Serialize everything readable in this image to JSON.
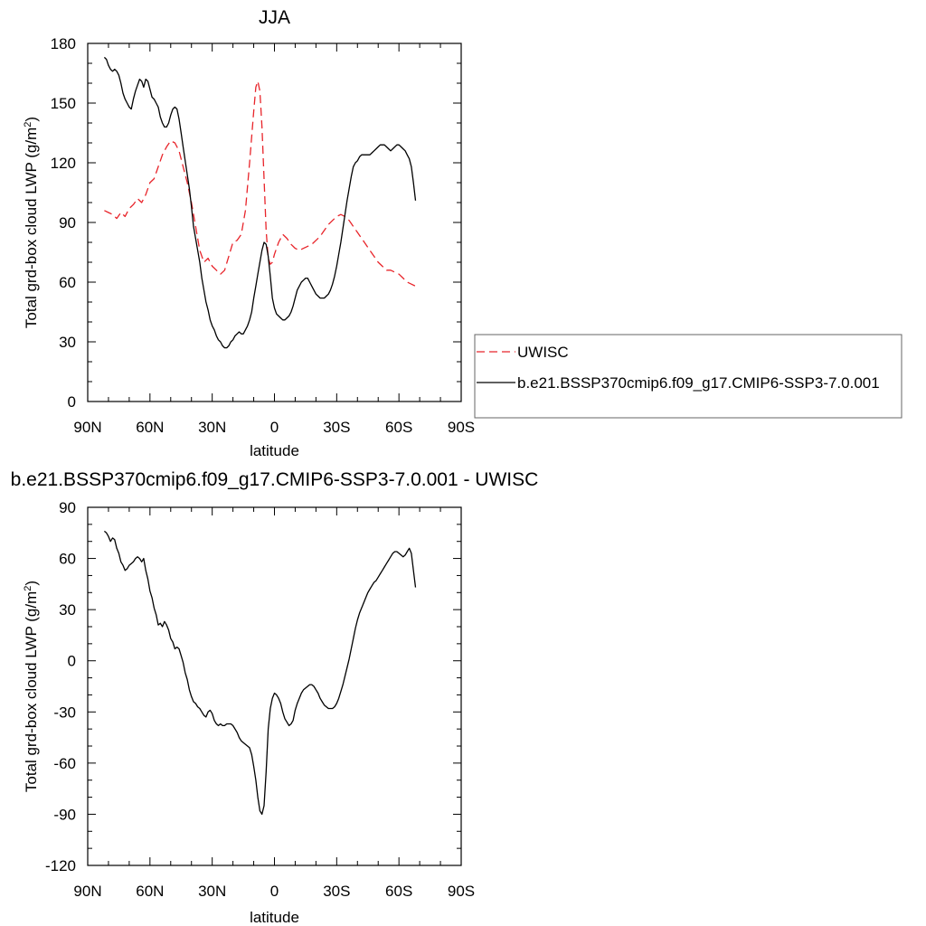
{
  "chart_data": [
    {
      "type": "line",
      "title": "JJA",
      "xlabel": "latitude",
      "ylabel": "Total grd-box cloud LWP (g/m",
      "ylabel_sup": "2",
      "ylabel_close": ")",
      "x_ticks": [
        "90N",
        "60N",
        "30N",
        "0",
        "30S",
        "60S",
        "90S"
      ],
      "x_tick_values": [
        90,
        60,
        30,
        0,
        -30,
        -60,
        -90
      ],
      "xlim": [
        90,
        -90
      ],
      "ylim": [
        0,
        180
      ],
      "y_ticks": [
        0,
        30,
        60,
        90,
        120,
        150,
        180
      ],
      "grid": false,
      "legend_position": "right",
      "series": [
        {
          "name": "UWISC",
          "color": "#e8242a",
          "dash": "dashed",
          "x": [
            82,
            80,
            78,
            76,
            74,
            72,
            70,
            68,
            66,
            64,
            62,
            60,
            58,
            56,
            54,
            52,
            50,
            48,
            46,
            44,
            42,
            40,
            38,
            36,
            34,
            32,
            30,
            28,
            26,
            24,
            22,
            20,
            18,
            16,
            14,
            12,
            10,
            9,
            8,
            7,
            6,
            5,
            4,
            3,
            2,
            1,
            0,
            -2,
            -4,
            -6,
            -8,
            -10,
            -12,
            -14,
            -16,
            -18,
            -20,
            -22,
            -24,
            -26,
            -28,
            -30,
            -32,
            -34,
            -36,
            -38,
            -40,
            -42,
            -44,
            -46,
            -48,
            -50,
            -52,
            -54,
            -56,
            -58,
            -60,
            -62,
            -64,
            -66,
            -68
          ],
          "y": [
            96,
            95,
            94,
            92,
            95,
            93,
            97,
            99,
            102,
            100,
            104,
            110,
            112,
            118,
            124,
            128,
            131,
            130,
            126,
            118,
            110,
            100,
            88,
            76,
            70,
            72,
            68,
            66,
            64,
            66,
            73,
            80,
            81,
            84,
            96,
            120,
            146,
            158,
            161,
            156,
            138,
            112,
            86,
            72,
            69,
            70,
            74,
            80,
            84,
            82,
            79,
            77,
            76,
            77,
            78,
            79,
            81,
            83,
            86,
            89,
            91,
            93,
            94,
            93,
            91,
            88,
            85,
            82,
            79,
            76,
            73,
            70,
            68,
            66,
            66,
            65,
            64,
            62,
            60,
            59,
            58
          ]
        },
        {
          "name": "b.e21.BSSP370cmip6.f09_g17.CMIP6-SSP3-7.0.001",
          "color": "#000000",
          "dash": "solid",
          "x": [
            82,
            81,
            80,
            79,
            78,
            77,
            76,
            75,
            74,
            73,
            72,
            71,
            70,
            69,
            68,
            67,
            66,
            65,
            64,
            63,
            62,
            61,
            60,
            59,
            58,
            57,
            56,
            55,
            54,
            53,
            52,
            51,
            50,
            49,
            48,
            47,
            46,
            45,
            44,
            43,
            42,
            41,
            40,
            39,
            38,
            37,
            36,
            35,
            34,
            33,
            32,
            31,
            30,
            29,
            28,
            27,
            26,
            25,
            24,
            23,
            22,
            21,
            20,
            19,
            18,
            17,
            16,
            15,
            14,
            13,
            12,
            11,
            10,
            9,
            8,
            7,
            6,
            5,
            4,
            3,
            2,
            1,
            0,
            -1,
            -2,
            -3,
            -4,
            -5,
            -6,
            -7,
            -8,
            -9,
            -10,
            -11,
            -12,
            -13,
            -14,
            -15,
            -16,
            -17,
            -18,
            -19,
            -20,
            -21,
            -22,
            -23,
            -24,
            -25,
            -26,
            -27,
            -28,
            -29,
            -30,
            -31,
            -32,
            -33,
            -34,
            -35,
            -36,
            -37,
            -38,
            -39,
            -40,
            -41,
            -42,
            -43,
            -44,
            -45,
            -46,
            -47,
            -48,
            -49,
            -50,
            -51,
            -52,
            -53,
            -54,
            -55,
            -56,
            -57,
            -58,
            -59,
            -60,
            -61,
            -62,
            -63,
            -64,
            -65,
            -66,
            -67,
            -68
          ],
          "y": [
            173,
            172,
            169,
            167,
            166,
            167,
            166,
            164,
            160,
            155,
            152,
            150,
            148,
            147,
            152,
            156,
            159,
            162,
            161,
            158,
            162,
            161,
            157,
            153,
            152,
            150,
            148,
            143,
            140,
            138,
            138,
            140,
            144,
            147,
            148,
            147,
            142,
            135,
            128,
            121,
            114,
            107,
            98,
            88,
            82,
            76,
            70,
            62,
            56,
            50,
            46,
            41,
            38,
            36,
            33,
            31,
            30,
            28,
            27,
            27,
            28,
            30,
            31,
            33,
            34,
            35,
            34,
            34,
            36,
            38,
            41,
            45,
            52,
            58,
            64,
            70,
            76,
            80,
            79,
            73,
            63,
            52,
            47,
            44,
            43,
            42,
            41,
            41,
            42,
            43,
            45,
            48,
            52,
            56,
            58,
            60,
            61,
            62,
            62,
            60,
            58,
            56,
            54,
            53,
            52,
            52,
            52,
            53,
            54,
            56,
            59,
            63,
            68,
            74,
            80,
            87,
            94,
            101,
            107,
            113,
            118,
            120,
            121,
            123,
            124,
            124,
            124,
            124,
            124,
            125,
            126,
            127,
            128,
            129,
            129,
            129,
            128,
            127,
            126,
            127,
            128,
            129,
            129,
            128,
            127,
            126,
            124,
            122,
            118,
            110,
            101
          ]
        }
      ]
    },
    {
      "type": "line",
      "title": "b.e21.BSSP370cmip6.f09_g17.CMIP6-SSP3-7.0.001 - UWISC",
      "xlabel": "latitude",
      "ylabel": "Total grd-box cloud LWP (g/m",
      "ylabel_sup": "2",
      "ylabel_close": ")",
      "x_ticks": [
        "90N",
        "60N",
        "30N",
        "0",
        "30S",
        "60S",
        "90S"
      ],
      "x_tick_values": [
        90,
        60,
        30,
        0,
        -30,
        -60,
        -90
      ],
      "xlim": [
        90,
        -90
      ],
      "ylim": [
        -120,
        90
      ],
      "y_ticks": [
        -120,
        -90,
        -60,
        -30,
        0,
        30,
        60,
        90
      ],
      "grid": false,
      "series": [
        {
          "name": "",
          "color": "#000000",
          "dash": "solid",
          "x": [
            82,
            81,
            80,
            79,
            78,
            77,
            76,
            75,
            74,
            73,
            72,
            71,
            70,
            69,
            68,
            67,
            66,
            65,
            64,
            63,
            62,
            61,
            60,
            59,
            58,
            57,
            56,
            55,
            54,
            53,
            52,
            51,
            50,
            49,
            48,
            47,
            46,
            45,
            44,
            43,
            42,
            41,
            40,
            39,
            38,
            37,
            36,
            35,
            34,
            33,
            32,
            31,
            30,
            29,
            28,
            27,
            26,
            25,
            24,
            23,
            22,
            21,
            20,
            19,
            18,
            17,
            16,
            15,
            14,
            13,
            12,
            11,
            10,
            9,
            8,
            7,
            6,
            5,
            4,
            3,
            2,
            1,
            0,
            -1,
            -2,
            -3,
            -4,
            -5,
            -6,
            -7,
            -8,
            -9,
            -10,
            -11,
            -12,
            -13,
            -14,
            -15,
            -16,
            -17,
            -18,
            -19,
            -20,
            -21,
            -22,
            -23,
            -24,
            -25,
            -26,
            -27,
            -28,
            -29,
            -30,
            -31,
            -32,
            -33,
            -34,
            -35,
            -36,
            -37,
            -38,
            -39,
            -40,
            -41,
            -42,
            -43,
            -44,
            -45,
            -46,
            -47,
            -48,
            -49,
            -50,
            -51,
            -52,
            -53,
            -54,
            -55,
            -56,
            -57,
            -58,
            -59,
            -60,
            -61,
            -62,
            -63,
            -64,
            -65,
            -66,
            -67,
            -68
          ],
          "y": [
            76,
            75,
            73,
            70,
            72,
            71,
            66,
            63,
            58,
            56,
            53,
            54,
            56,
            57,
            58,
            60,
            61,
            60,
            58,
            60,
            53,
            48,
            41,
            37,
            31,
            27,
            21,
            22,
            20,
            23,
            21,
            18,
            13,
            11,
            7,
            8,
            7,
            3,
            -1,
            -7,
            -11,
            -17,
            -21,
            -24,
            -25,
            -27,
            -28,
            -30,
            -32,
            -33,
            -30,
            -29,
            -31,
            -35,
            -37,
            -38,
            -37,
            -38,
            -38,
            -37,
            -37,
            -37,
            -38,
            -40,
            -42,
            -45,
            -47,
            -48,
            -49,
            -50,
            -51,
            -55,
            -62,
            -70,
            -80,
            -88,
            -90,
            -85,
            -65,
            -40,
            -28,
            -22,
            -19,
            -20,
            -22,
            -25,
            -30,
            -34,
            -36,
            -38,
            -37,
            -35,
            -29,
            -25,
            -22,
            -19,
            -17,
            -16,
            -15,
            -14,
            -14,
            -15,
            -17,
            -19,
            -22,
            -24,
            -26,
            -27,
            -28,
            -28,
            -28,
            -27,
            -25,
            -22,
            -18,
            -14,
            -9,
            -4,
            1,
            7,
            13,
            19,
            24,
            28,
            31,
            34,
            37,
            40,
            42,
            44,
            46,
            47,
            49,
            51,
            53,
            55,
            57,
            59,
            61,
            63,
            64,
            64,
            63,
            62,
            61,
            62,
            64,
            66,
            63,
            53,
            43
          ]
        }
      ]
    }
  ]
}
